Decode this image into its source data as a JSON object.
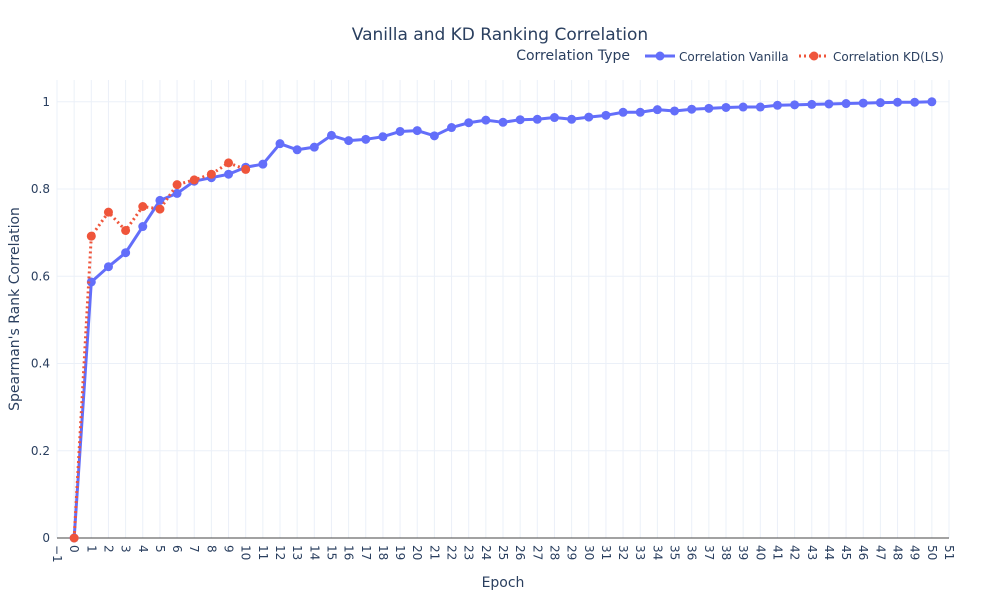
{
  "chart_data": {
    "type": "line",
    "title": "Vanilla and KD Ranking Correlation",
    "xlabel": "Epoch",
    "ylabel": "Spearman's Rank Correlation",
    "xlim": [
      -1,
      51
    ],
    "ylim": [
      0,
      1.05
    ],
    "x_ticks": [
      -1,
      0,
      1,
      2,
      3,
      4,
      5,
      6,
      7,
      8,
      9,
      10,
      11,
      12,
      13,
      14,
      15,
      16,
      17,
      18,
      19,
      20,
      21,
      22,
      23,
      24,
      25,
      26,
      27,
      28,
      29,
      30,
      31,
      32,
      33,
      34,
      35,
      36,
      37,
      38,
      39,
      40,
      41,
      42,
      43,
      44,
      45,
      46,
      47,
      48,
      49,
      50,
      51
    ],
    "y_ticks": [
      0,
      0.2,
      0.4,
      0.6,
      0.8,
      1
    ],
    "y_tick_labels": [
      "0",
      "0.2",
      "0.4",
      "0.6",
      "0.8",
      "1"
    ],
    "grid": true,
    "legend": {
      "title": "Correlation Type",
      "placement": "top-right",
      "orientation": "horizontal"
    },
    "series": [
      {
        "name": "Correlation Vanilla",
        "color": "#636efa",
        "line_style": "solid",
        "x": [
          0,
          1,
          2,
          3,
          4,
          5,
          6,
          7,
          8,
          9,
          10,
          11,
          12,
          13,
          14,
          15,
          16,
          17,
          18,
          19,
          20,
          21,
          22,
          23,
          24,
          25,
          26,
          27,
          28,
          29,
          30,
          31,
          32,
          33,
          34,
          35,
          36,
          37,
          38,
          39,
          40,
          41,
          42,
          43,
          44,
          45,
          46,
          47,
          48,
          49,
          50
        ],
        "y": [
          0,
          0.587,
          0.622,
          0.654,
          0.714,
          0.774,
          0.79,
          0.818,
          0.826,
          0.834,
          0.85,
          0.857,
          0.904,
          0.89,
          0.896,
          0.923,
          0.911,
          0.914,
          0.92,
          0.932,
          0.934,
          0.922,
          0.941,
          0.952,
          0.958,
          0.953,
          0.959,
          0.96,
          0.964,
          0.96,
          0.965,
          0.969,
          0.976,
          0.976,
          0.982,
          0.979,
          0.983,
          0.985,
          0.987,
          0.988,
          0.988,
          0.992,
          0.993,
          0.994,
          0.995,
          0.996,
          0.997,
          0.998,
          0.999,
          0.999,
          1.0
        ]
      },
      {
        "name": "Correlation KD(LS)",
        "color": "#ef553b",
        "line_style": "dotted",
        "x": [
          0,
          1,
          2,
          3,
          4,
          5,
          6,
          7,
          8,
          9,
          10
        ],
        "y": [
          0,
          0.692,
          0.747,
          0.705,
          0.76,
          0.754,
          0.81,
          0.821,
          0.834,
          0.86,
          0.845
        ]
      }
    ]
  }
}
